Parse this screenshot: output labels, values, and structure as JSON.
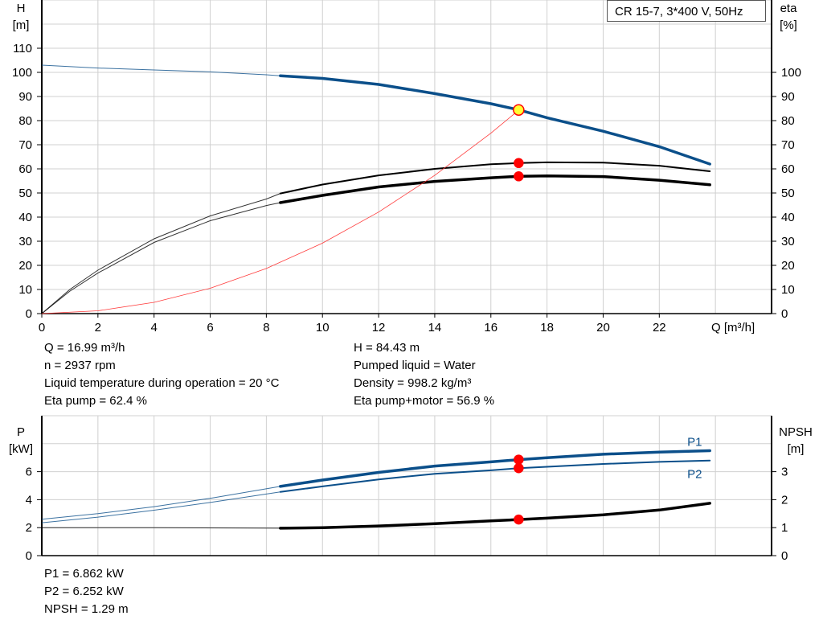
{
  "legend_box": "CR 15-7, 3*400 V, 50Hz",
  "info_top": {
    "left": [
      "Q = 16.99 m³/h",
      "n = 2937 rpm",
      "Liquid temperature during operation = 20 °C",
      "Eta pump = 62.4 %"
    ],
    "right": [
      "H = 84.43 m",
      "Pumped liquid = Water",
      "Density = 998.2 kg/m³",
      "Eta pump+motor = 56.9 %"
    ]
  },
  "info_bottom": [
    "P1 = 6.862 kW",
    "P2 = 6.252 kW",
    "NPSH = 1.29 m"
  ],
  "colors": {
    "head": "#0b4f8a",
    "eta": "#000000",
    "system": "#ff3b3b",
    "point": "#ff0000",
    "duty_point": "#ffff33",
    "grid": "#d0d0d0"
  },
  "chart_data": [
    {
      "type": "line",
      "xlabel": "Q [m³/h]",
      "ylabel": "H\n[m]",
      "y2label": "eta\n[%]",
      "xlim": [
        0,
        26
      ],
      "ylim": [
        0,
        130
      ],
      "y2lim": [
        0,
        130
      ],
      "x_ticks": [
        0,
        2,
        4,
        6,
        8,
        10,
        12,
        14,
        16,
        18,
        20,
        22
      ],
      "y_ticks": [
        0,
        10,
        20,
        30,
        40,
        50,
        60,
        70,
        80,
        90,
        100,
        110
      ],
      "y2_ticks": [
        0,
        10,
        20,
        30,
        40,
        50,
        60,
        70,
        80,
        90,
        100
      ],
      "grid": true,
      "thick_from_q": 8.5,
      "series": [
        {
          "id": "H",
          "color": "#0b4f8a",
          "x": [
            0,
            2,
            4,
            6,
            8,
            8.5,
            10,
            12,
            14,
            16,
            17,
            18,
            20,
            22,
            23.8
          ],
          "y": [
            103,
            101.8,
            101,
            100.2,
            99,
            98.6,
            97.5,
            95,
            91.2,
            87,
            84.43,
            81.2,
            75.6,
            69.2,
            62
          ]
        },
        {
          "id": "eta_pump",
          "color": "#000000",
          "x": [
            0,
            1,
            2,
            4,
            6,
            8,
            8.5,
            10,
            12,
            14,
            16,
            17,
            18,
            20,
            22,
            23.8
          ],
          "y": [
            0,
            10,
            18,
            31,
            40.5,
            47.5,
            49.8,
            53.5,
            57.3,
            60,
            61.9,
            62.4,
            62.7,
            62.6,
            61.3,
            59
          ]
        },
        {
          "id": "eta_pump_motor",
          "color": "#000000",
          "x": [
            0,
            1,
            2,
            4,
            6,
            8,
            8.5,
            10,
            12,
            14,
            16,
            17,
            18,
            20,
            22,
            23.8
          ],
          "y": [
            0,
            9.3,
            16.8,
            29.5,
            38.5,
            44.8,
            46,
            49,
            52.5,
            54.8,
            56.3,
            56.9,
            57.1,
            56.8,
            55.3,
            53.4
          ]
        },
        {
          "id": "system",
          "color": "#ff3b3b",
          "x": [
            0,
            2,
            4,
            6,
            8,
            10,
            12,
            14,
            16,
            17
          ],
          "y": [
            0,
            1.17,
            4.67,
            10.5,
            18.7,
            29.2,
            42.1,
            57.3,
            74.8,
            84.43
          ],
          "thin": true
        }
      ],
      "points": [
        {
          "x": 16.99,
          "y": 84.43,
          "fill": "#ffff33"
        },
        {
          "x": 16.99,
          "y": 62.4,
          "fill": "#ff0000"
        },
        {
          "x": 16.99,
          "y": 56.9,
          "fill": "#ff0000"
        }
      ]
    },
    {
      "type": "line",
      "ylabel": "P\n[kW]",
      "y2label": "NPSH\n[m]",
      "xlim": [
        0,
        26
      ],
      "ylim": [
        0,
        10
      ],
      "y2lim": [
        0,
        5
      ],
      "y_ticks": [
        0,
        2,
        4,
        6
      ],
      "y2_ticks": [
        0,
        1,
        2,
        3
      ],
      "grid": true,
      "thick_from_q": 8.5,
      "series": [
        {
          "id": "P1",
          "name": "P1",
          "color": "#0b4f8a",
          "x": [
            0,
            2,
            4,
            6,
            8.5,
            10,
            12,
            14,
            16,
            17,
            18,
            20,
            22,
            23.8
          ],
          "y": [
            2.6,
            3.0,
            3.5,
            4.1,
            4.95,
            5.4,
            5.95,
            6.4,
            6.7,
            6.862,
            7.0,
            7.25,
            7.4,
            7.5
          ]
        },
        {
          "id": "P2",
          "name": "P2",
          "color": "#0b4f8a",
          "x": [
            0,
            2,
            4,
            6,
            8.5,
            10,
            12,
            14,
            16,
            17,
            18,
            20,
            22,
            23.8
          ],
          "y": [
            2.35,
            2.75,
            3.25,
            3.8,
            4.55,
            4.95,
            5.45,
            5.85,
            6.1,
            6.252,
            6.35,
            6.55,
            6.7,
            6.8
          ]
        },
        {
          "id": "NPSH",
          "color": "#000000",
          "axis": "y2",
          "x": [
            0,
            4,
            8.5,
            10,
            12,
            14,
            16,
            17,
            18,
            20,
            22,
            23.8
          ],
          "y": [
            1.0,
            1.0,
            0.98,
            1.0,
            1.06,
            1.14,
            1.24,
            1.29,
            1.34,
            1.46,
            1.63,
            1.87
          ]
        }
      ],
      "points": [
        {
          "x": 16.99,
          "y": 6.862,
          "fill": "#ff0000"
        },
        {
          "x": 16.99,
          "y": 6.252,
          "fill": "#ff0000"
        },
        {
          "x": 16.99,
          "y": 1.29,
          "axis": "y2",
          "fill": "#ff0000"
        }
      ]
    }
  ]
}
